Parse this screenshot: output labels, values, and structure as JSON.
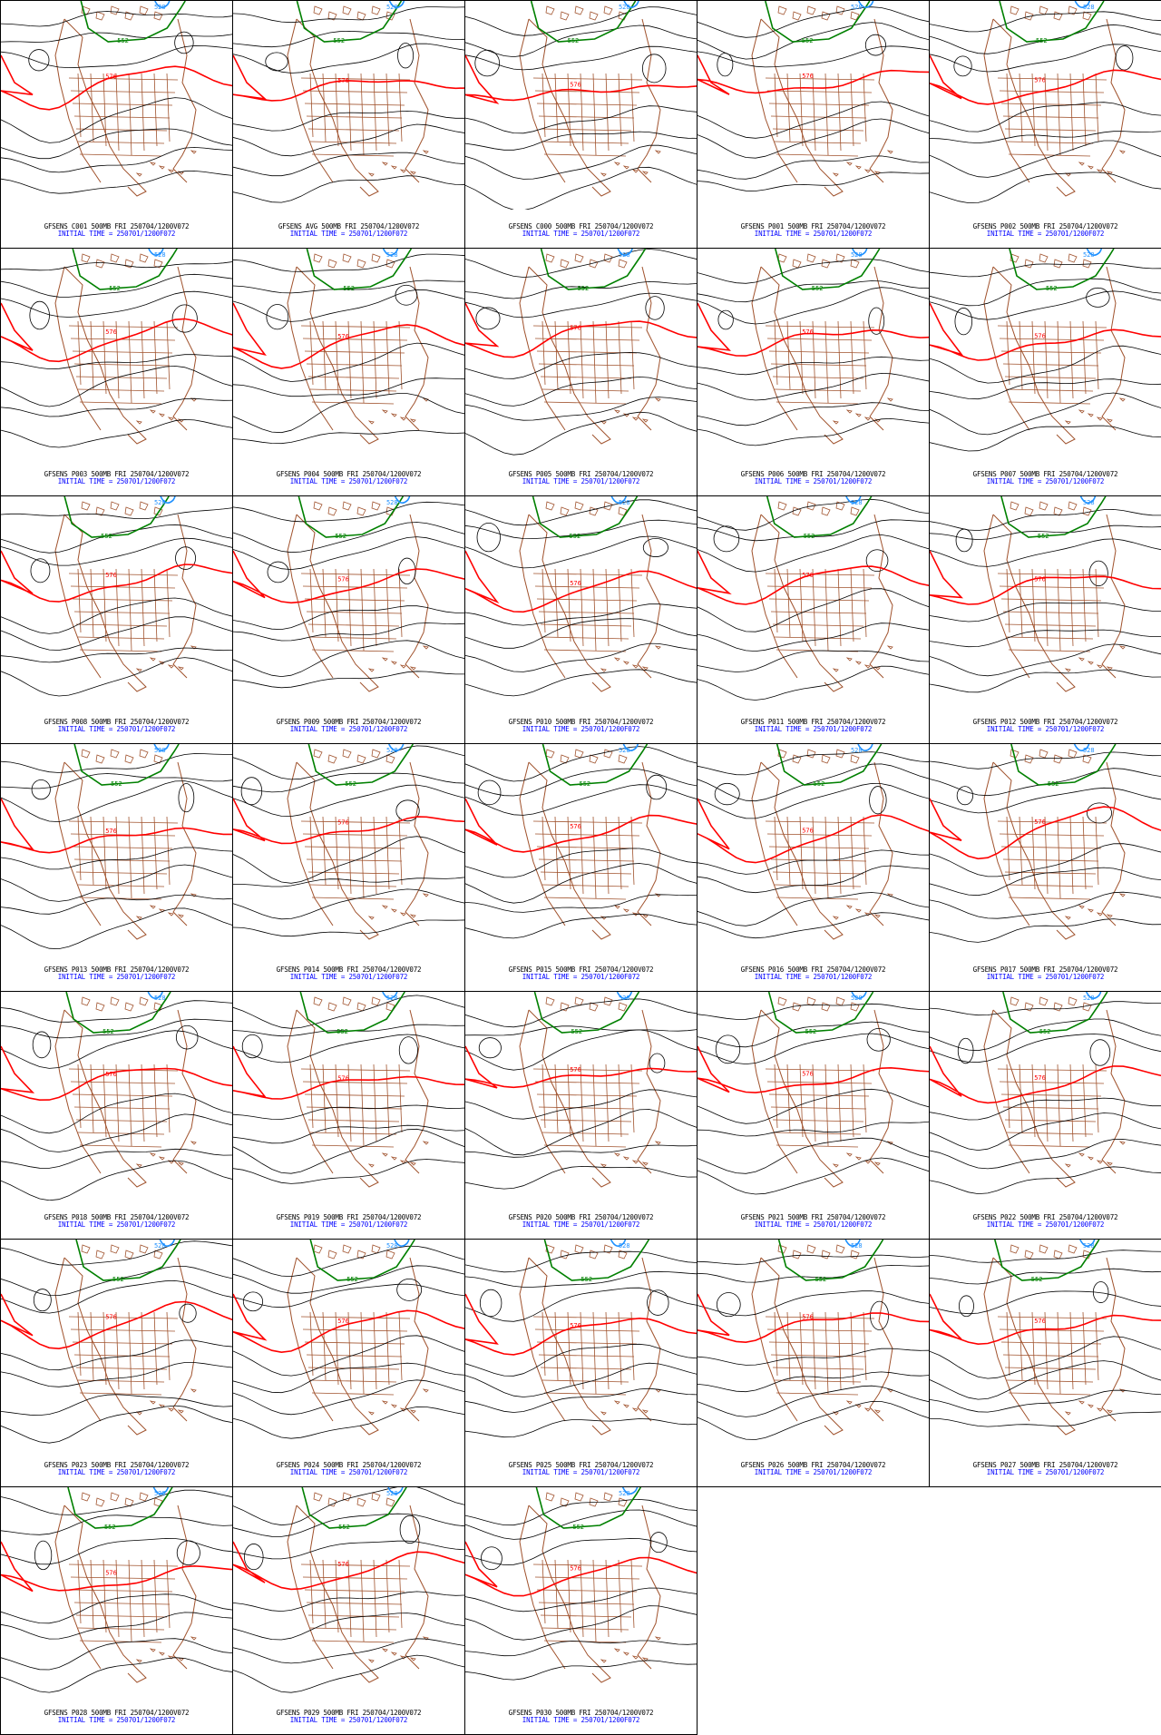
{
  "colors": {
    "background": "#ffffff",
    "border": "#000000",
    "contour": "#000000",
    "contour_576": "#ff0000",
    "contour_552": "#008000",
    "contour_528": "#1e90ff",
    "map_lines": "#a0522d",
    "caption_line1": "#000000",
    "caption_line2": "#0000ff"
  },
  "contour_labels": {
    "red": "576",
    "green": "552",
    "blue": "528"
  },
  "panels": [
    {
      "line1": "GFSENS C001 500MB FRI 250704/1200V072",
      "line2": "INITIAL TIME = 250701/1200F072"
    },
    {
      "line1": "GFSENS AVG 500MB FRI 250704/1200V072",
      "line2": "INITIAL TIME = 250701/1200F072"
    },
    {
      "line1": "GFSENS C000 500MB FRI 250704/1200V072",
      "line2": "INITIAL TIME = 250701/1200F072"
    },
    {
      "line1": "GFSENS P001 500MB FRI 250704/1200V072",
      "line2": "INITIAL TIME = 250701/1200F072"
    },
    {
      "line1": "GFSENS P002 500MB FRI 250704/1200V072",
      "line2": "INITIAL TIME = 250701/1200F072"
    },
    {
      "line1": "GFSENS P003 500MB FRI 250704/1200V072",
      "line2": "INITIAL TIME = 250701/1200F072"
    },
    {
      "line1": "GFSENS P004 500MB FRI 250704/1200V072",
      "line2": "INITIAL TIME = 250701/1200F072"
    },
    {
      "line1": "GFSENS P005 500MB FRI 250704/1200V072",
      "line2": "INITIAL TIME = 250701/1200F072"
    },
    {
      "line1": "GFSENS P006 500MB FRI 250704/1200V072",
      "line2": "INITIAL TIME = 250701/1200F072"
    },
    {
      "line1": "GFSENS P007 500MB FRI 250704/1200V072",
      "line2": "INITIAL TIME = 250701/1200F072"
    },
    {
      "line1": "GFSENS P008 500MB FRI 250704/1200V072",
      "line2": "INITIAL TIME = 250701/1200F072"
    },
    {
      "line1": "GFSENS P009 500MB FRI 250704/1200V072",
      "line2": "INITIAL TIME = 250701/1200F072"
    },
    {
      "line1": "GFSENS P010 500MB FRI 250704/1200V072",
      "line2": "INITIAL TIME = 250701/1200F072"
    },
    {
      "line1": "GFSENS P011 500MB FRI 250704/1200V072",
      "line2": "INITIAL TIME = 250701/1200F072"
    },
    {
      "line1": "GFSENS P012 500MB FRI 250704/1200V072",
      "line2": "INITIAL TIME = 250701/1200F072"
    },
    {
      "line1": "GFSENS P013 500MB FRI 250704/1200V072",
      "line2": "INITIAL TIME = 250701/1200F072"
    },
    {
      "line1": "GFSENS P014 500MB FRI 250704/1200V072",
      "line2": "INITIAL TIME = 250701/1200F072"
    },
    {
      "line1": "GFSENS P015 500MB FRI 250704/1200V072",
      "line2": "INITIAL TIME = 250701/1200F072"
    },
    {
      "line1": "GFSENS P016 500MB FRI 250704/1200V072",
      "line2": "INITIAL TIME = 250701/1200F072"
    },
    {
      "line1": "GFSENS P017 500MB FRI 250704/1200V072",
      "line2": "INITIAL TIME = 250701/1200F072"
    },
    {
      "line1": "GFSENS P018 500MB FRI 250704/1200V072",
      "line2": "INITIAL TIME = 250701/1200F072"
    },
    {
      "line1": "GFSENS P019 500MB FRI 250704/1200V072",
      "line2": "INITIAL TIME = 250701/1200F072"
    },
    {
      "line1": "GFSENS P020 500MB FRI 250704/1200V072",
      "line2": "INITIAL TIME = 250701/1200F072"
    },
    {
      "line1": "GFSENS P021 500MB FRI 250704/1200V072",
      "line2": "INITIAL TIME = 250701/1200F072"
    },
    {
      "line1": "GFSENS P022 500MB FRI 250704/1200V072",
      "line2": "INITIAL TIME = 250701/1200F072"
    },
    {
      "line1": "GFSENS P023 500MB FRI 250704/1200V072",
      "line2": "INITIAL TIME = 250701/1200F072"
    },
    {
      "line1": "GFSENS P024 500MB FRI 250704/1200V072",
      "line2": "INITIAL TIME = 250701/1200F072"
    },
    {
      "line1": "GFSENS P025 500MB FRI 250704/1200V072",
      "line2": "INITIAL TIME = 250701/1200F072"
    },
    {
      "line1": "GFSENS P026 500MB FRI 250704/1200V072",
      "line2": "INITIAL TIME = 250701/1200F072"
    },
    {
      "line1": "GFSENS P027 500MB FRI 250704/1200V072",
      "line2": "INITIAL TIME = 250701/1200F072"
    },
    {
      "line1": "GFSENS P028 500MB FRI 250704/1200V072",
      "line2": "INITIAL TIME = 250701/1200F072"
    },
    {
      "line1": "GFSENS P029 500MB FRI 250704/1200V072",
      "line2": "INITIAL TIME = 250701/1200F072"
    },
    {
      "line1": "GFSENS P030 500MB FRI 250704/1200V072",
      "line2": "INITIAL TIME = 250701/1200F072"
    }
  ]
}
